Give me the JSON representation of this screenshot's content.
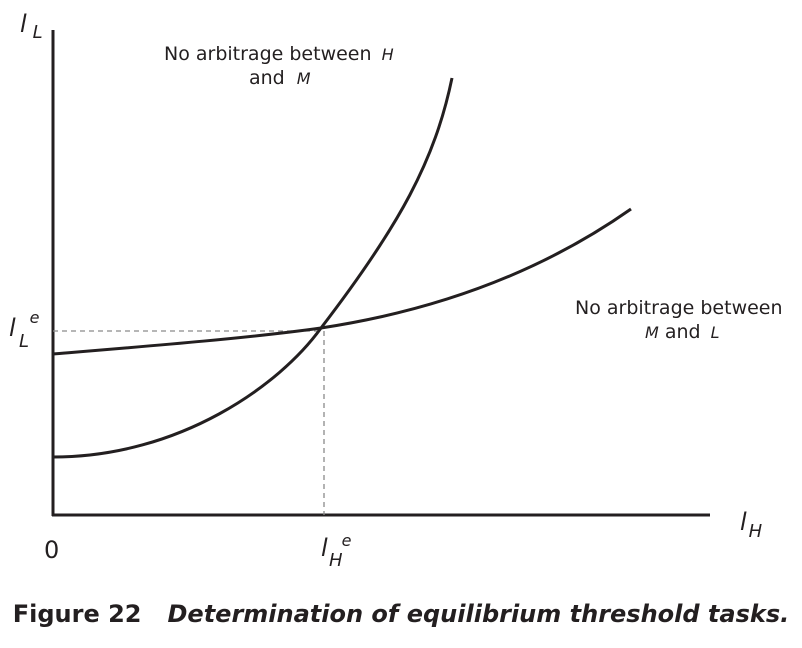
{
  "axes": {
    "y_label": {
      "main": "l",
      "sub": "L"
    },
    "x_label": {
      "main": "l",
      "sub": "H"
    },
    "origin": "0",
    "y_equilibrium": {
      "main": "l",
      "sub": "L",
      "sup": "e"
    },
    "x_equilibrium": {
      "main": "l",
      "sub": "H",
      "sup": "e"
    }
  },
  "curves": {
    "hm": {
      "label_line1_prefix": "No arbitrage between ",
      "label_line1_var": "H",
      "label_line2_prefix": "and ",
      "label_line2_var": "M"
    },
    "ml": {
      "label_line1": "No arbitrage between",
      "label_line2_var1": "M",
      "label_line2_mid": " and ",
      "label_line2_var2": "L"
    }
  },
  "caption": {
    "number": "Figure 22",
    "title": "Determination of equilibrium threshold tasks."
  },
  "colors": {
    "ink": "#231f20",
    "dashed_guide": "#8a8a8a"
  }
}
